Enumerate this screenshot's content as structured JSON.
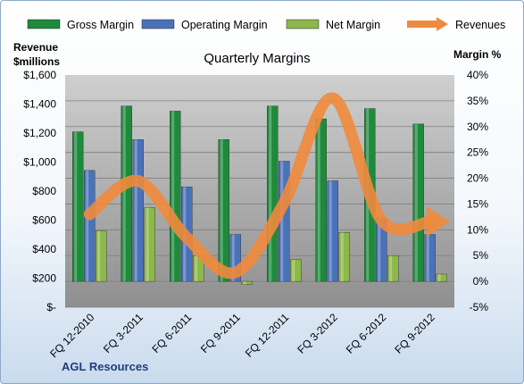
{
  "chart_data": {
    "type": "bar",
    "title": "Quarterly Margins",
    "categories": [
      "FQ 12-2010",
      "FQ 3-2011",
      "FQ 6-2011",
      "FQ 9-2011",
      "FQ 12-2011",
      "FQ 3-2012",
      "FQ 6-2012",
      "FQ 9-2012"
    ],
    "series": [
      {
        "name": "Gross Margin",
        "axis": "right",
        "color": "#1e8a3c",
        "values": [
          29,
          34,
          33,
          27.5,
          34,
          31.5,
          33.5,
          30.5
        ]
      },
      {
        "name": "Operating Margin",
        "axis": "right",
        "color": "#4a72b8",
        "values": [
          21.5,
          27.5,
          18.3,
          9.1,
          23.3,
          19.5,
          12.3,
          9.1
        ]
      },
      {
        "name": "Net Margin",
        "axis": "right",
        "color": "#8db84a",
        "values": [
          9.8,
          14.3,
          5.0,
          -0.6,
          4.2,
          9.5,
          5.0,
          1.4
        ]
      },
      {
        "name": "Revenues",
        "axis": "left",
        "type": "line",
        "color": "#f08a3c",
        "values": [
          640,
          870,
          480,
          240,
          720,
          1440,
          600,
          590
        ]
      }
    ],
    "ylabel_left": "Revenue\n$millions",
    "ylabel_right": "Margin %",
    "ylim_left": [
      0,
      1600
    ],
    "ylim_right": [
      -5,
      40
    ],
    "yticks_left": [
      "$-",
      "$200",
      "$400",
      "$600",
      "$800",
      "$1,000",
      "$1,200",
      "$1,400",
      "$1,600"
    ],
    "yticks_right": [
      "-5%",
      "0%",
      "5%",
      "10%",
      "15%",
      "20%",
      "25%",
      "30%",
      "35%",
      "40%"
    ],
    "legend": "top",
    "grid": true
  },
  "footer": {
    "company": "AGL Resources"
  }
}
